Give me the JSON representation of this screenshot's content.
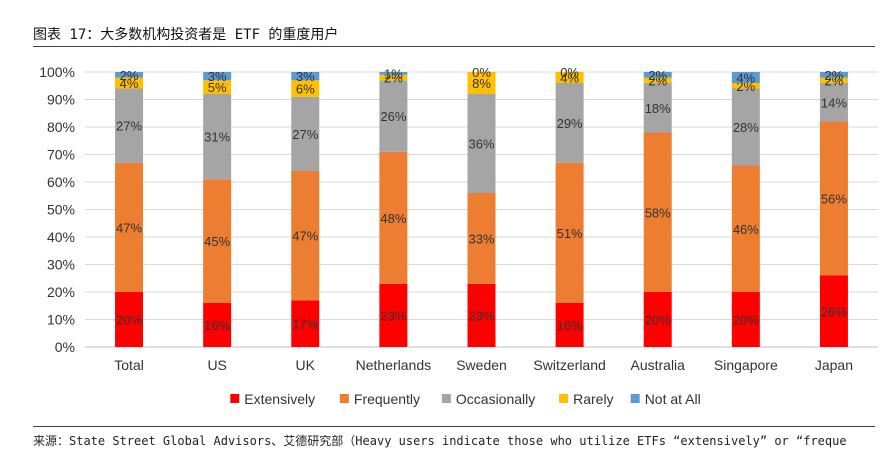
{
  "title": "图表 17：大多数机构投资者是 ETF 的重度用户",
  "source_note": "来源：State Street Global Advisors、艾德研究部（Heavy users indicate those who utilize ETFs “extensively” or “freque",
  "chart_data": {
    "type": "bar",
    "stacked": true,
    "categories": [
      "Total",
      "US",
      "UK",
      "Netherlands",
      "Sweden",
      "Switzerland",
      "Australia",
      "Singapore",
      "Japan"
    ],
    "series": [
      {
        "name": "Extensively",
        "color": "#ff0000",
        "values": [
          20,
          16,
          17,
          23,
          23,
          16,
          20,
          20,
          26
        ]
      },
      {
        "name": "Frequently",
        "color": "#ed7d31",
        "values": [
          47,
          45,
          47,
          48,
          33,
          51,
          58,
          46,
          56
        ]
      },
      {
        "name": "Occasionally",
        "color": "#a5a5a5",
        "values": [
          27,
          31,
          27,
          26,
          36,
          29,
          18,
          28,
          14
        ]
      },
      {
        "name": "Rarely",
        "color": "#ffc000",
        "values": [
          4,
          5,
          6,
          2,
          8,
          4,
          2,
          2,
          2
        ]
      },
      {
        "name": "Not at All",
        "color": "#5b9bd5",
        "values": [
          2,
          3,
          3,
          1,
          0,
          0,
          2,
          4,
          2
        ]
      }
    ],
    "y_ticks": [
      "0%",
      "10%",
      "20%",
      "30%",
      "40%",
      "50%",
      "60%",
      "70%",
      "80%",
      "90%",
      "100%"
    ],
    "ylim": [
      0,
      100
    ],
    "y_unit": "%",
    "grid": true,
    "legend_position": "bottom"
  }
}
